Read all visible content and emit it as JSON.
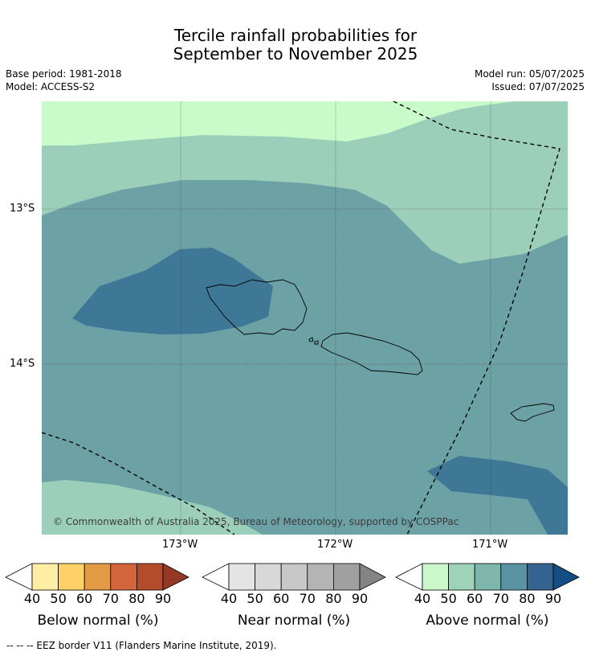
{
  "title_line1": "Tercile rainfall probabilities for",
  "title_line2": "September to November 2025",
  "base_period": "Base period: 1981-2018",
  "model": "Model: ACCESS-S2",
  "model_run": "Model run: 05/07/2025",
  "issued": "Issued: 07/07/2025",
  "lat_labels": [
    "13°S",
    "14°S"
  ],
  "lon_labels": [
    "173°W",
    "172°W",
    "171°W"
  ],
  "copyright": "© Commonwealth of Australia 2025, Bureau of Meteorology, supported by COSPPac",
  "colorbars": [
    {
      "label": "Below normal (%)",
      "ticks": [
        "40",
        "50",
        "60",
        "70",
        "80",
        "90"
      ],
      "colors": [
        "#ffeea3",
        "#fdd068",
        "#e29a46",
        "#d2663a",
        "#b24c2a",
        "#963826"
      ]
    },
    {
      "label": "Near normal (%)",
      "ticks": [
        "40",
        "50",
        "60",
        "70",
        "80",
        "90"
      ],
      "colors": [
        "#e4e4e4",
        "#d8d8d8",
        "#c8c8c8",
        "#b4b4b4",
        "#a0a0a0",
        "#848484"
      ]
    },
    {
      "label": "Above normal (%)",
      "ticks": [
        "40",
        "50",
        "60",
        "70",
        "80",
        "90"
      ],
      "colors": [
        "#cbf8cb",
        "#9ed3b9",
        "#7fb6ab",
        "#5992a2",
        "#35638f",
        "#154e85"
      ]
    }
  ],
  "map_colors": {
    "above_40_50": "#c9fac9",
    "above_50_60": "#9bcfb9",
    "above_60_70": "#6ca2a6",
    "above_70_80": "#3f7797",
    "grid": "#333333"
  },
  "footer": "--  --  -- EEZ border V11 (Flanders Marine Institute, 2019)."
}
